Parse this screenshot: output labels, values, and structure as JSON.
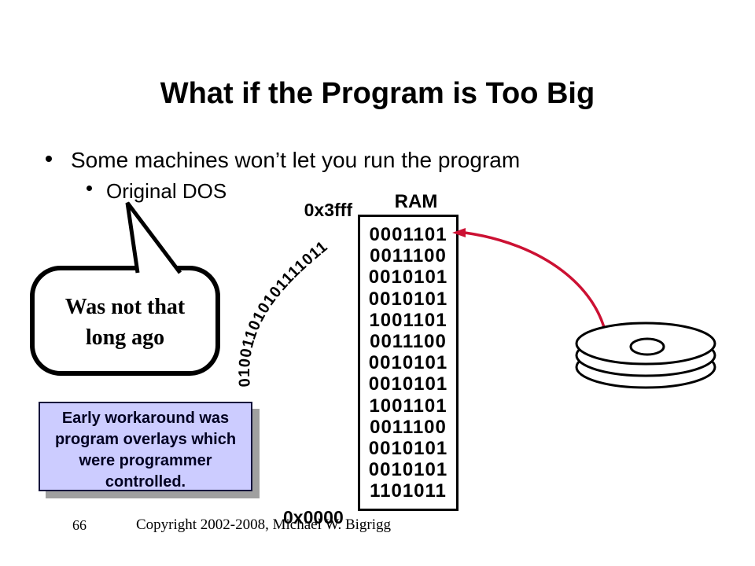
{
  "colors": {
    "ink": "#000000",
    "note_fill": "#CCCCFF",
    "note_shadow": "#A0A0A0",
    "arrow_red": "#CC1133"
  },
  "slide": {
    "title": "What if the Program is Too Big",
    "bullet_main": "Some machines won’t let you run the program",
    "bullet_sub": "Original DOS",
    "callout": {
      "line1": "Was not that",
      "line2": "long ago"
    },
    "note_box": {
      "lines": [
        "Early workaround was",
        "program overlays which",
        "were programmer",
        "controlled."
      ]
    },
    "ram": {
      "label": "RAM",
      "addr_top": "0x3fff",
      "addr_bottom": "0x0000",
      "rows": [
        "0001101",
        "0011100",
        "0010101",
        "0010101",
        "1001101",
        "0011100",
        "0010101",
        "0010101",
        "1001101",
        "0011100",
        "0010101",
        "0010101",
        "1101011"
      ]
    },
    "arc_binary": "010011010101111011",
    "footer": {
      "page_number": "66",
      "copyright": "Copyright 2002-2008, Michael W. Bigrigg"
    }
  }
}
